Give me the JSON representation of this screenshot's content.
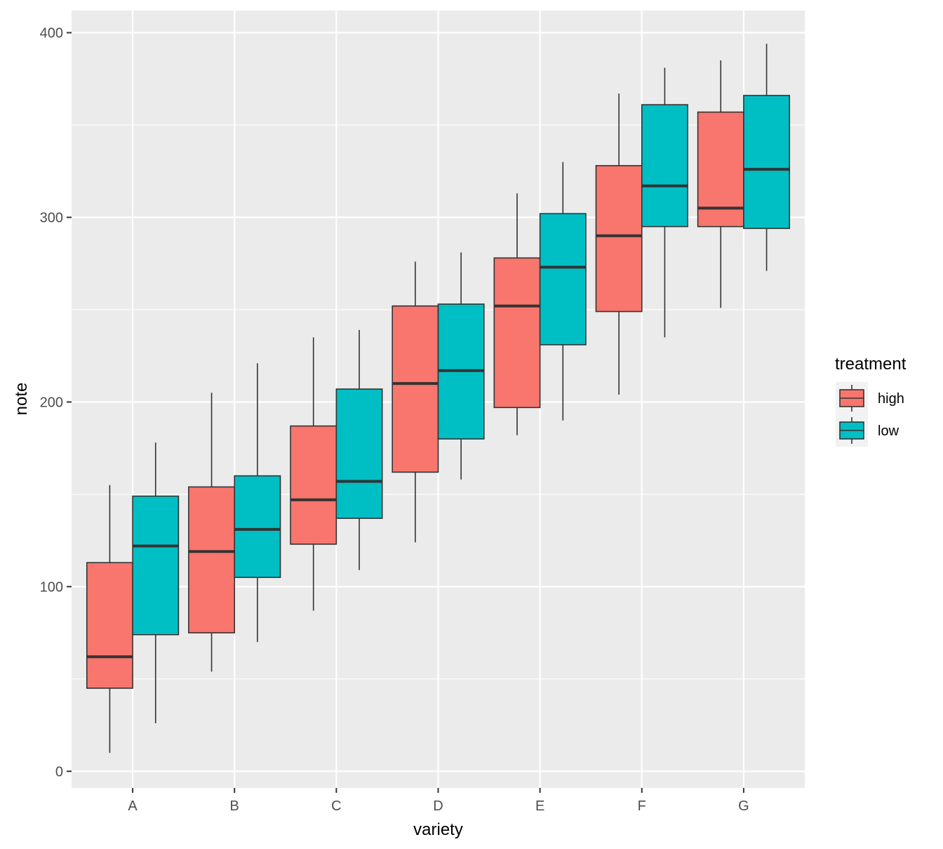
{
  "chart_data": {
    "type": "boxplot",
    "xlabel": "variety",
    "ylabel": "note",
    "ylim": [
      -9,
      412
    ],
    "yticks": [
      0,
      100,
      200,
      300,
      400
    ],
    "categories": [
      "A",
      "B",
      "C",
      "D",
      "E",
      "F",
      "G"
    ],
    "panel_background": "#EBEBEB",
    "grid": true,
    "legend": {
      "title": "treatment",
      "position": "right"
    },
    "series": [
      {
        "name": "high",
        "color": "#F8766D",
        "boxes": [
          {
            "category": "A",
            "whisker_low": 10,
            "q1": 45,
            "median": 62,
            "q3": 113,
            "whisker_high": 155
          },
          {
            "category": "B",
            "whisker_low": 54,
            "q1": 75,
            "median": 119,
            "q3": 154,
            "whisker_high": 205
          },
          {
            "category": "C",
            "whisker_low": 87,
            "q1": 123,
            "median": 147,
            "q3": 187,
            "whisker_high": 235
          },
          {
            "category": "D",
            "whisker_low": 124,
            "q1": 162,
            "median": 210,
            "q3": 252,
            "whisker_high": 276
          },
          {
            "category": "E",
            "whisker_low": 182,
            "q1": 197,
            "median": 252,
            "q3": 278,
            "whisker_high": 313
          },
          {
            "category": "F",
            "whisker_low": 204,
            "q1": 249,
            "median": 290,
            "q3": 328,
            "whisker_high": 367
          },
          {
            "category": "G",
            "whisker_low": 251,
            "q1": 295,
            "median": 305,
            "q3": 357,
            "whisker_high": 385
          }
        ]
      },
      {
        "name": "low",
        "color": "#00BFC4",
        "boxes": [
          {
            "category": "A",
            "whisker_low": 26,
            "q1": 74,
            "median": 122,
            "q3": 149,
            "whisker_high": 178
          },
          {
            "category": "B",
            "whisker_low": 70,
            "q1": 105,
            "median": 131,
            "q3": 160,
            "whisker_high": 221
          },
          {
            "category": "C",
            "whisker_low": 109,
            "q1": 137,
            "median": 157,
            "q3": 207,
            "whisker_high": 239
          },
          {
            "category": "D",
            "whisker_low": 158,
            "q1": 180,
            "median": 217,
            "q3": 253,
            "whisker_high": 281
          },
          {
            "category": "E",
            "whisker_low": 190,
            "q1": 231,
            "median": 273,
            "q3": 302,
            "whisker_high": 330
          },
          {
            "category": "F",
            "whisker_low": 235,
            "q1": 295,
            "median": 317,
            "q3": 361,
            "whisker_high": 381
          },
          {
            "category": "G",
            "whisker_low": 271,
            "q1": 294,
            "median": 326,
            "q3": 366,
            "whisker_high": 394
          }
        ]
      }
    ]
  }
}
